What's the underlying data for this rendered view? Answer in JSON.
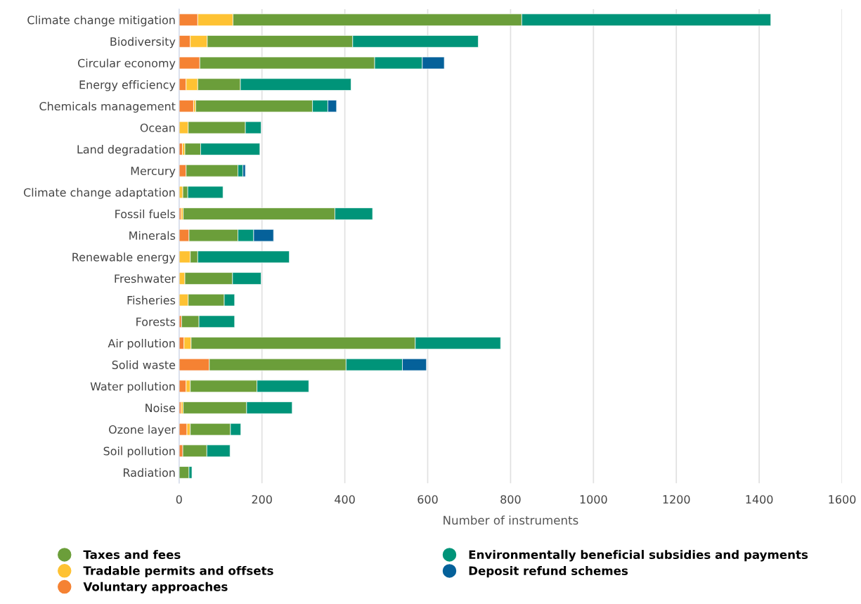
{
  "chart_data": {
    "type": "bar",
    "orientation": "horizontal",
    "stacked": true,
    "xlabel": "Number of instruments",
    "categories": [
      "Climate change mitigation",
      "Biodiversity",
      "Circular economy",
      "Energy efficiency",
      "Chemicals management",
      "Ocean",
      "Land degradation",
      "Mercury",
      "Climate change adaptation",
      "Fossil fuels",
      "Minerals",
      "Renewable energy",
      "Freshwater",
      "Fisheries",
      "Forests",
      "Air pollution",
      "Solid waste",
      "Water pollution",
      "Noise",
      "Ozone layer",
      "Soil pollution",
      "Radiation"
    ],
    "series": [
      {
        "name": "Voluntary approaches",
        "color": "#f58233",
        "values": [
          45,
          27,
          50,
          17,
          35,
          0,
          8,
          17,
          0,
          5,
          24,
          0,
          0,
          0,
          6,
          12,
          73,
          17,
          5,
          19,
          9,
          0
        ]
      },
      {
        "name": "Tradable permits and offsets",
        "color": "#fec233",
        "values": [
          85,
          41,
          0,
          28,
          5,
          22,
          6,
          0,
          9,
          5,
          0,
          27,
          14,
          22,
          0,
          17,
          0,
          10,
          5,
          8,
          0,
          0
        ]
      },
      {
        "name": "Taxes and fees",
        "color": "#6b9e3a",
        "values": [
          697,
          351,
          422,
          103,
          282,
          138,
          38,
          125,
          12,
          366,
          118,
          18,
          115,
          87,
          42,
          541,
          330,
          161,
          153,
          97,
          58,
          24
        ]
      },
      {
        "name": "Environmentally beneficial subsidies and payments",
        "color": "#009479",
        "values": [
          601,
          303,
          115,
          267,
          37,
          38,
          143,
          12,
          85,
          91,
          38,
          221,
          69,
          25,
          86,
          206,
          136,
          125,
          110,
          25,
          56,
          7
        ]
      },
      {
        "name": "Deposit refund schemes",
        "color": "#05619a",
        "values": [
          0,
          0,
          53,
          0,
          21,
          0,
          0,
          6,
          0,
          0,
          48,
          0,
          0,
          0,
          0,
          0,
          58,
          0,
          0,
          0,
          0,
          0
        ]
      }
    ],
    "xlim": [
      0,
      1600
    ],
    "xticks": [
      0,
      200,
      400,
      600,
      800,
      1000,
      1200,
      1400,
      1600
    ],
    "grid": "x",
    "legend": "bottom"
  }
}
